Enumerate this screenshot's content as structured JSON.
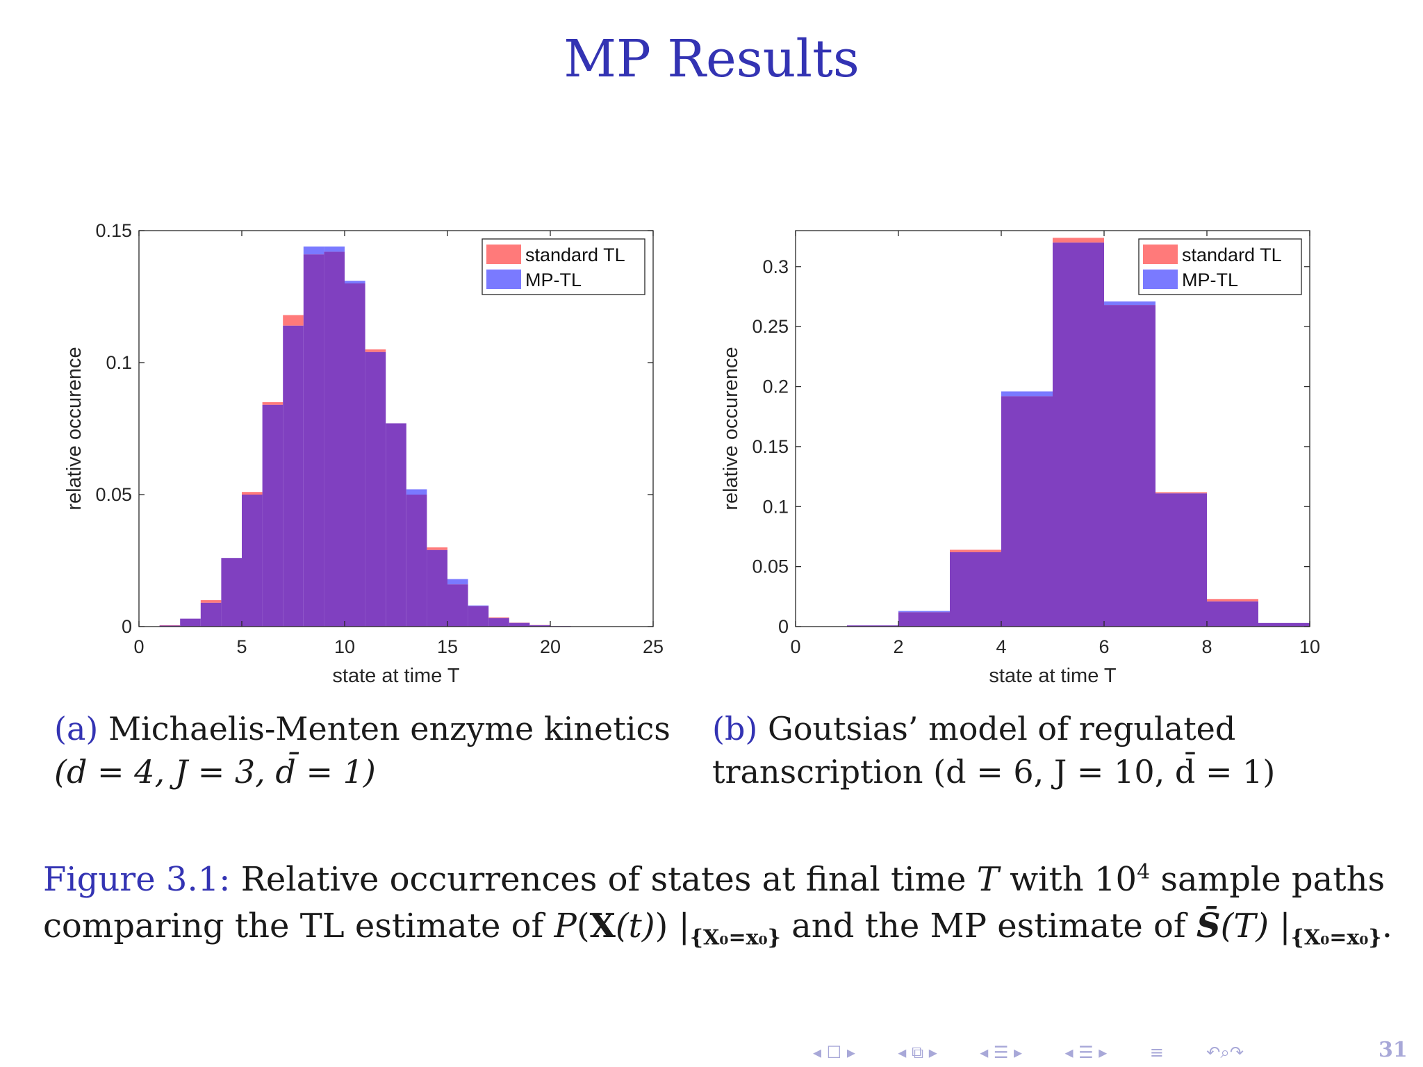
{
  "slide": {
    "title": "MP Results",
    "page_number": "31"
  },
  "colors": {
    "standard_tl": "#ff7a7a",
    "mp_tl": "#7a7aff",
    "overlap": "#8040c0",
    "accent": "#3333b3"
  },
  "subfigures": [
    {
      "label": "(a)",
      "line1": "Michaelis-Menten enzyme kinetics",
      "line2": "(d = 4, J = 3, d̄ = 1)"
    },
    {
      "label": "(b)",
      "line1": "Goutsias’ model of regulated",
      "line2": "transcription (d = 6, J = 10, d̄ = 1)"
    }
  ],
  "figure_caption": {
    "label": "Figure 3.1:",
    "text_1": "Relative occurrences of states at final time",
    "T": "T",
    "text_2": "with",
    "samples_base": "10",
    "samples_exp": "4",
    "text_3": "sample paths comparing the TL estimate of",
    "P": "P",
    "X": "X",
    "t": "(t)",
    "cond": "{X₀=x₀}",
    "text_4": "and the MP estimate of",
    "S": "S̄",
    "ST": "(T)"
  },
  "chart_data": [
    {
      "type": "bar",
      "xlabel": "state at time T",
      "ylabel": "relative occurence",
      "xlim": [
        0,
        25
      ],
      "ylim": [
        0,
        0.15
      ],
      "xticks": [
        "0",
        "5",
        "10",
        "15",
        "20",
        "25"
      ],
      "yticks": [
        "0",
        "0.05",
        "0.1",
        "0.15"
      ],
      "bin_edges_start": 1,
      "bin_width": 1,
      "legend_position": "top-right",
      "series": [
        {
          "name": "standard TL",
          "values": [
            0.0005,
            0.003,
            0.01,
            0.026,
            0.051,
            0.085,
            0.118,
            0.141,
            0.142,
            0.13,
            0.105,
            0.077,
            0.05,
            0.03,
            0.016,
            0.0078,
            0.0035,
            0.0015,
            0.0006,
            0.0002
          ]
        },
        {
          "name": "MP-TL",
          "values": [
            0.0004,
            0.003,
            0.009,
            0.026,
            0.05,
            0.084,
            0.114,
            0.144,
            0.144,
            0.131,
            0.104,
            0.077,
            0.052,
            0.029,
            0.018,
            0.008,
            0.0032,
            0.0014,
            0.0005,
            0.0002
          ]
        }
      ]
    },
    {
      "type": "bar",
      "xlabel": "state at time T",
      "ylabel": "relative occurence",
      "xlim": [
        0,
        10
      ],
      "ylim": [
        0,
        0.33
      ],
      "xticks": [
        "0",
        "2",
        "4",
        "6",
        "8",
        "10"
      ],
      "yticks": [
        "0",
        "0.05",
        "0.1",
        "0.15",
        "0.2",
        "0.25",
        "0.3"
      ],
      "bin_edges_start": 1,
      "bin_width": 1,
      "legend_position": "top-right",
      "series": [
        {
          "name": "standard TL",
          "values": [
            0.001,
            0.012,
            0.064,
            0.192,
            0.324,
            0.268,
            0.112,
            0.023,
            0.003
          ]
        },
        {
          "name": "MP-TL",
          "values": [
            0.001,
            0.013,
            0.062,
            0.196,
            0.32,
            0.271,
            0.111,
            0.021,
            0.003
          ]
        }
      ]
    }
  ]
}
